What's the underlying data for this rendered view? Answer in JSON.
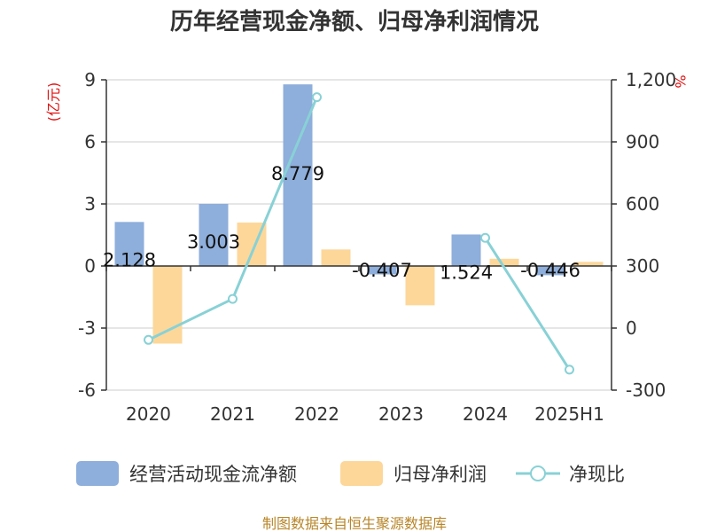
{
  "chart_data": {
    "type": "bar",
    "title": "历年经营现金净额、归母净利润情况",
    "categories": [
      "2020",
      "2021",
      "2022",
      "2023",
      "2024",
      "2025H1"
    ],
    "left_axis": {
      "unit": "(亿元)",
      "ylim": [
        -6,
        9
      ],
      "ticks": [
        "9",
        "6",
        "3",
        "0",
        "-3",
        "-6"
      ],
      "tick_values": [
        9,
        6,
        3,
        0,
        -3,
        -6
      ]
    },
    "right_axis": {
      "unit": "%",
      "ylim": [
        -300,
        1200
      ],
      "ticks": [
        "1,200",
        "900",
        "600",
        "300",
        "0",
        "-300"
      ],
      "tick_values": [
        1200,
        900,
        600,
        300,
        0,
        -300
      ]
    },
    "series": [
      {
        "name": "经营活动现金流净额",
        "type": "bar",
        "axis": "left",
        "color": "#8eaedb",
        "values": [
          2.128,
          3.003,
          8.779,
          -0.407,
          1.524,
          -0.446
        ],
        "labels": [
          "2.128",
          "3.003",
          "8.779",
          "-0.407",
          "1.524",
          "-0.446"
        ]
      },
      {
        "name": "归母净利润",
        "type": "bar",
        "axis": "left",
        "color": "#fdd79a",
        "values": [
          -3.75,
          2.1,
          0.8,
          -1.9,
          0.35,
          0.2
        ]
      },
      {
        "name": "净现比",
        "type": "line",
        "axis": "right",
        "color": "#88d1d6",
        "values": [
          -57,
          141,
          1116,
          null,
          436,
          -201
        ]
      }
    ],
    "grid": true,
    "legend_position": "bottom"
  },
  "source": "制图数据来自恒生聚源数据库"
}
